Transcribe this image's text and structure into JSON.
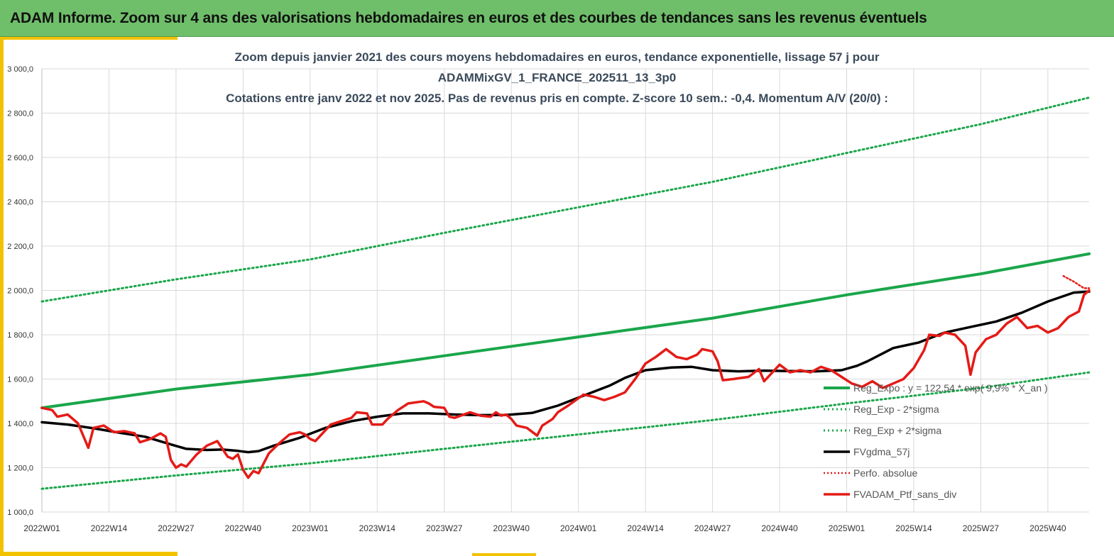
{
  "header": {
    "title": "ADAM Informe. Zoom sur 4 ans des valorisations hebdomadaires en euros et des courbes de tendances sans les revenus éventuels"
  },
  "colors": {
    "header_bg": "#6fbf6a",
    "accent_gold": "#f2c200",
    "trend_green": "#1aa64a",
    "portfolio_red": "#e41b17",
    "moving_avg_black": "#000000"
  },
  "chart_data": {
    "type": "line",
    "title_lines": [
      "Zoom depuis janvier 2021 des cours moyens hebdomadaires  en euros, tendance exponentielle, lissage 57 j pour",
      "ADAMMixGV_1_FRANCE_202511_13_3p0",
      "Cotations entre janv 2022 et nov 2025. Pas de revenus pris en compte. Z-score 10 sem.: -0,4. Momentum A/V (20/0) :"
    ],
    "ylim": [
      1000,
      3000
    ],
    "y_ticks": [
      "1 000,0",
      "1 200,0",
      "1 400,0",
      "1 600,0",
      "1 800,0",
      "2 000,0",
      "2 200,0",
      "2 400,0",
      "2 600,0",
      "2 800,0",
      "3 000,0"
    ],
    "x_week_count": 203,
    "x_ticks": [
      {
        "week": 0,
        "label": "2022W01"
      },
      {
        "week": 13,
        "label": "2022W14"
      },
      {
        "week": 26,
        "label": "2022W27"
      },
      {
        "week": 39,
        "label": "2022W40"
      },
      {
        "week": 52,
        "label": "2023W01"
      },
      {
        "week": 65,
        "label": "2023W14"
      },
      {
        "week": 78,
        "label": "2023W27"
      },
      {
        "week": 91,
        "label": "2023W40"
      },
      {
        "week": 104,
        "label": "2024W01"
      },
      {
        "week": 117,
        "label": "2024W14"
      },
      {
        "week": 130,
        "label": "2024W27"
      },
      {
        "week": 143,
        "label": "2024W40"
      },
      {
        "week": 156,
        "label": "2025W01"
      },
      {
        "week": 169,
        "label": "2025W14"
      },
      {
        "week": 182,
        "label": "2025W27"
      },
      {
        "week": 195,
        "label": "2025W40"
      }
    ],
    "grid": true,
    "legend_position": "bottom-right",
    "series": [
      {
        "name": "Reg_Expo : y = 122,54 * exp( 9,9% *  X_an )",
        "style": "solid-thick",
        "points": [
          [
            0,
            1470
          ],
          [
            26,
            1555
          ],
          [
            52,
            1620
          ],
          [
            78,
            1705
          ],
          [
            104,
            1790
          ],
          [
            130,
            1875
          ],
          [
            156,
            1980
          ],
          [
            182,
            2075
          ],
          [
            203,
            2165
          ]
        ]
      },
      {
        "name": "Reg_Exp - 2*sigma",
        "style": "dotted",
        "points": [
          [
            0,
            1105
          ],
          [
            26,
            1165
          ],
          [
            52,
            1220
          ],
          [
            78,
            1285
          ],
          [
            104,
            1350
          ],
          [
            130,
            1415
          ],
          [
            156,
            1490
          ],
          [
            182,
            1560
          ],
          [
            203,
            1630
          ]
        ]
      },
      {
        "name": "Reg_Exp + 2*sigma",
        "style": "dotted",
        "points": [
          [
            0,
            1950
          ],
          [
            26,
            2050
          ],
          [
            52,
            2140
          ],
          [
            78,
            2260
          ],
          [
            104,
            2375
          ],
          [
            130,
            2490
          ],
          [
            156,
            2620
          ],
          [
            182,
            2750
          ],
          [
            203,
            2870
          ]
        ]
      },
      {
        "name": "FVgdma_57j",
        "style": "solid-thick",
        "points": [
          [
            0,
            1405
          ],
          [
            5,
            1395
          ],
          [
            10,
            1378
          ],
          [
            15,
            1358
          ],
          [
            20,
            1340
          ],
          [
            25,
            1305
          ],
          [
            28,
            1285
          ],
          [
            32,
            1280
          ],
          [
            35,
            1282
          ],
          [
            38,
            1276
          ],
          [
            40,
            1270
          ],
          [
            42,
            1275
          ],
          [
            45,
            1300
          ],
          [
            50,
            1335
          ],
          [
            55,
            1380
          ],
          [
            60,
            1410
          ],
          [
            65,
            1430
          ],
          [
            70,
            1445
          ],
          [
            75,
            1445
          ],
          [
            80,
            1440
          ],
          [
            85,
            1437
          ],
          [
            90,
            1438
          ],
          [
            95,
            1447
          ],
          [
            100,
            1480
          ],
          [
            105,
            1525
          ],
          [
            110,
            1570
          ],
          [
            113,
            1605
          ],
          [
            117,
            1640
          ],
          [
            122,
            1652
          ],
          [
            126,
            1655
          ],
          [
            130,
            1640
          ],
          [
            135,
            1635
          ],
          [
            140,
            1638
          ],
          [
            145,
            1636
          ],
          [
            150,
            1635
          ],
          [
            155,
            1640
          ],
          [
            158,
            1660
          ],
          [
            160,
            1680
          ],
          [
            165,
            1740
          ],
          [
            170,
            1765
          ],
          [
            175,
            1810
          ],
          [
            180,
            1835
          ],
          [
            185,
            1860
          ],
          [
            190,
            1900
          ],
          [
            195,
            1950
          ],
          [
            200,
            1990
          ],
          [
            203,
            1995
          ]
        ]
      },
      {
        "name": "Perfo. absolue",
        "style": "dotted",
        "points": [
          [
            198,
            2065
          ],
          [
            200,
            2040
          ],
          [
            202,
            2010
          ],
          [
            203,
            2010
          ]
        ]
      },
      {
        "name": "FVADAM_Ptf_sans_div",
        "style": "solid-thick",
        "points": [
          [
            0,
            1470
          ],
          [
            2,
            1460
          ],
          [
            3,
            1430
          ],
          [
            5,
            1440
          ],
          [
            7,
            1400
          ],
          [
            9,
            1290
          ],
          [
            10,
            1380
          ],
          [
            12,
            1390
          ],
          [
            14,
            1360
          ],
          [
            16,
            1365
          ],
          [
            18,
            1355
          ],
          [
            19,
            1315
          ],
          [
            21,
            1330
          ],
          [
            23,
            1355
          ],
          [
            24,
            1340
          ],
          [
            25,
            1235
          ],
          [
            26,
            1200
          ],
          [
            27,
            1215
          ],
          [
            28,
            1205
          ],
          [
            30,
            1260
          ],
          [
            32,
            1300
          ],
          [
            34,
            1320
          ],
          [
            35,
            1285
          ],
          [
            36,
            1250
          ],
          [
            37,
            1240
          ],
          [
            38,
            1260
          ],
          [
            39,
            1190
          ],
          [
            40,
            1155
          ],
          [
            41,
            1185
          ],
          [
            42,
            1175
          ],
          [
            44,
            1265
          ],
          [
            46,
            1310
          ],
          [
            48,
            1350
          ],
          [
            50,
            1360
          ],
          [
            51,
            1350
          ],
          [
            52,
            1330
          ],
          [
            53,
            1320
          ],
          [
            55,
            1370
          ],
          [
            56,
            1395
          ],
          [
            58,
            1410
          ],
          [
            60,
            1425
          ],
          [
            61,
            1450
          ],
          [
            63,
            1445
          ],
          [
            64,
            1395
          ],
          [
            66,
            1395
          ],
          [
            67,
            1420
          ],
          [
            69,
            1460
          ],
          [
            71,
            1490
          ],
          [
            74,
            1500
          ],
          [
            75,
            1490
          ],
          [
            76,
            1475
          ],
          [
            78,
            1470
          ],
          [
            79,
            1430
          ],
          [
            80,
            1425
          ],
          [
            83,
            1450
          ],
          [
            85,
            1435
          ],
          [
            87,
            1430
          ],
          [
            88,
            1450
          ],
          [
            89,
            1435
          ],
          [
            90,
            1440
          ],
          [
            91,
            1420
          ],
          [
            92,
            1390
          ],
          [
            94,
            1380
          ],
          [
            96,
            1345
          ],
          [
            97,
            1390
          ],
          [
            99,
            1420
          ],
          [
            100,
            1450
          ],
          [
            102,
            1480
          ],
          [
            105,
            1530
          ],
          [
            107,
            1520
          ],
          [
            109,
            1505
          ],
          [
            111,
            1520
          ],
          [
            113,
            1540
          ],
          [
            115,
            1600
          ],
          [
            117,
            1670
          ],
          [
            119,
            1700
          ],
          [
            121,
            1735
          ],
          [
            123,
            1700
          ],
          [
            125,
            1690
          ],
          [
            127,
            1710
          ],
          [
            128,
            1735
          ],
          [
            130,
            1725
          ],
          [
            131,
            1680
          ],
          [
            132,
            1595
          ],
          [
            134,
            1600
          ],
          [
            137,
            1610
          ],
          [
            139,
            1645
          ],
          [
            140,
            1590
          ],
          [
            141,
            1615
          ],
          [
            143,
            1665
          ],
          [
            145,
            1630
          ],
          [
            147,
            1640
          ],
          [
            149,
            1630
          ],
          [
            151,
            1655
          ],
          [
            153,
            1640
          ],
          [
            155,
            1610
          ],
          [
            157,
            1580
          ],
          [
            159,
            1565
          ],
          [
            161,
            1590
          ],
          [
            163,
            1560
          ],
          [
            165,
            1580
          ],
          [
            167,
            1600
          ],
          [
            169,
            1650
          ],
          [
            171,
            1730
          ],
          [
            172,
            1800
          ],
          [
            174,
            1795
          ],
          [
            175,
            1810
          ],
          [
            177,
            1800
          ],
          [
            179,
            1750
          ],
          [
            180,
            1620
          ],
          [
            181,
            1720
          ],
          [
            183,
            1780
          ],
          [
            185,
            1800
          ],
          [
            187,
            1850
          ],
          [
            189,
            1880
          ],
          [
            191,
            1830
          ],
          [
            193,
            1840
          ],
          [
            195,
            1810
          ],
          [
            197,
            1830
          ],
          [
            199,
            1880
          ],
          [
            201,
            1905
          ],
          [
            202,
            1980
          ],
          [
            203,
            2000
          ]
        ]
      }
    ]
  }
}
